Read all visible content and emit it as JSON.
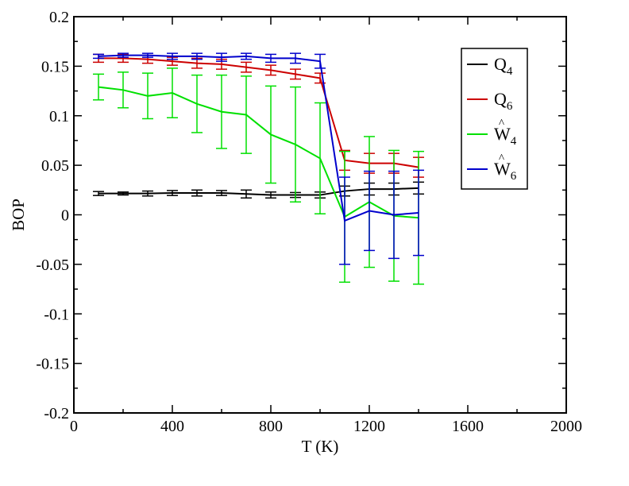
{
  "chart_data": {
    "type": "line",
    "xlabel": "T (K)",
    "ylabel": "BOP",
    "xlim": [
      0,
      2000
    ],
    "ylim": [
      -0.2,
      0.2
    ],
    "xticks": [
      0,
      400,
      800,
      1200,
      1600,
      2000
    ],
    "yticks": [
      -0.2,
      -0.15,
      -0.1,
      -0.05,
      0,
      0.05,
      0.1,
      0.15,
      0.2
    ],
    "xtick_labels": [
      "0",
      "400",
      "800",
      "1200",
      "1600",
      "2000"
    ],
    "ytick_labels": [
      "-0.2",
      "-0.15",
      "-0.1",
      "-0.05",
      "0",
      "0.05",
      "0.1",
      "0.15",
      "0.2"
    ],
    "grid": false,
    "legend_position": "top-right",
    "x": [
      100,
      200,
      300,
      400,
      500,
      600,
      700,
      800,
      900,
      1000,
      1100,
      1200,
      1300,
      1400
    ],
    "series": [
      {
        "name": "Q4",
        "base": "Q",
        "sub": "4",
        "hat": false,
        "color": "#000000",
        "values": [
          0.0215,
          0.0215,
          0.0215,
          0.022,
          0.022,
          0.022,
          0.021,
          0.02,
          0.02,
          0.02,
          0.024,
          0.026,
          0.026,
          0.027
        ],
        "errors": [
          0.002,
          0.0015,
          0.0025,
          0.0025,
          0.003,
          0.0025,
          0.004,
          0.003,
          0.0025,
          0.003,
          0.005,
          0.006,
          0.006,
          0.006
        ]
      },
      {
        "name": "Q6",
        "base": "Q",
        "sub": "6",
        "hat": false,
        "color": "#cc0000",
        "values": [
          0.158,
          0.158,
          0.157,
          0.155,
          0.153,
          0.152,
          0.149,
          0.146,
          0.142,
          0.138,
          0.055,
          0.052,
          0.052,
          0.048
        ],
        "errors": [
          0.004,
          0.004,
          0.004,
          0.004,
          0.005,
          0.005,
          0.005,
          0.005,
          0.005,
          0.005,
          0.01,
          0.01,
          0.01,
          0.01
        ]
      },
      {
        "name": "Ŵ4",
        "base": "W",
        "sub": "4",
        "hat": true,
        "color": "#00e000",
        "values": [
          0.129,
          0.126,
          0.12,
          0.123,
          0.112,
          0.104,
          0.101,
          0.081,
          0.071,
          0.057,
          -0.002,
          0.013,
          -0.001,
          -0.003
        ],
        "errors": [
          0.013,
          0.018,
          0.023,
          0.025,
          0.029,
          0.037,
          0.039,
          0.049,
          0.058,
          0.056,
          0.066,
          0.066,
          0.066,
          0.067
        ]
      },
      {
        "name": "Ŵ6",
        "base": "W",
        "sub": "6",
        "hat": true,
        "color": "#0000cc",
        "values": [
          0.16,
          0.161,
          0.161,
          0.16,
          0.16,
          0.159,
          0.16,
          0.158,
          0.158,
          0.155,
          -0.006,
          0.004,
          0.0,
          0.002
        ],
        "errors": [
          0.002,
          0.002,
          0.002,
          0.003,
          0.003,
          0.004,
          0.003,
          0.004,
          0.005,
          0.007,
          0.044,
          0.04,
          0.044,
          0.043
        ]
      }
    ]
  }
}
